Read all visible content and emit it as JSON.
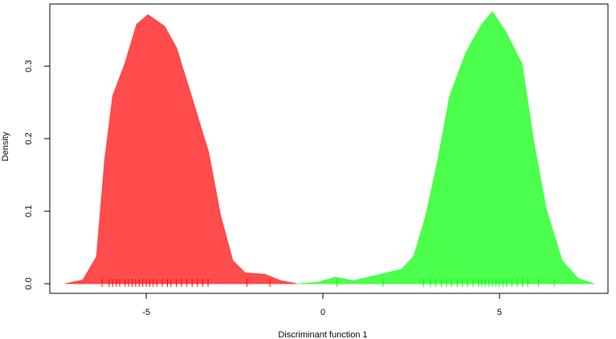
{
  "chart_data": {
    "type": "density",
    "xlabel": "Discriminant function 1",
    "ylabel": "Density",
    "xlim": [
      -7.73,
      8.07
    ],
    "ylim": [
      -0.0133,
      0.3856
    ],
    "xticks": [
      -5,
      0,
      5
    ],
    "yticks": [
      {
        "value": 0,
        "label": "0.0"
      },
      {
        "value": 0.1,
        "label": "0.1"
      },
      {
        "value": 0.2,
        "label": "0.2"
      },
      {
        "value": 0.3,
        "label": "0.3"
      }
    ],
    "series": [
      {
        "color": "#ff4d4d",
        "rug_color": "#ff0000",
        "x": [
          -7.3,
          -6.8,
          -6.41,
          -6.18,
          -5.95,
          -5.61,
          -5.27,
          -4.95,
          -4.48,
          -4.14,
          -3.68,
          -3.23,
          -2.89,
          -2.55,
          -2.2,
          -1.64,
          -1.18,
          -0.73
        ],
        "values": [
          0,
          0.005,
          0.037,
          0.17,
          0.259,
          0.303,
          0.358,
          0.371,
          0.355,
          0.325,
          0.253,
          0.181,
          0.093,
          0.032,
          0.015,
          0.013,
          0.004,
          0
        ],
        "rug": [
          -6.25,
          -6.05,
          -5.95,
          -5.85,
          -5.75,
          -5.6,
          -5.5,
          -5.4,
          -5.3,
          -5.2,
          -5.1,
          -5.0,
          -4.9,
          -4.8,
          -4.7,
          -4.55,
          -4.4,
          -4.3,
          -4.15,
          -4.0,
          -3.85,
          -3.7,
          -3.55,
          -3.4,
          -3.25,
          -2.15,
          -1.5
        ]
      },
      {
        "color": "#4dff4d",
        "rug_color": "#00ff00",
        "x": [
          -0.73,
          -0.16,
          0.36,
          0.86,
          1.55,
          2.23,
          2.57,
          2.91,
          3.25,
          3.59,
          4.05,
          4.5,
          4.8,
          5.18,
          5.64,
          5.98,
          6.32,
          6.77,
          7.23,
          7.68
        ],
        "values": [
          0,
          0.002,
          0.009,
          0.004,
          0.012,
          0.02,
          0.038,
          0.093,
          0.17,
          0.259,
          0.319,
          0.358,
          0.375,
          0.347,
          0.303,
          0.193,
          0.104,
          0.032,
          0.007,
          0
        ],
        "rug": [
          0.4,
          1.7,
          2.85,
          3.05,
          3.2,
          3.35,
          3.5,
          3.65,
          3.8,
          3.95,
          4.1,
          4.25,
          4.4,
          4.5,
          4.6,
          4.7,
          4.8,
          4.9,
          5.0,
          5.1,
          5.2,
          5.35,
          5.5,
          5.65,
          5.8,
          6.1,
          6.55
        ]
      }
    ]
  }
}
